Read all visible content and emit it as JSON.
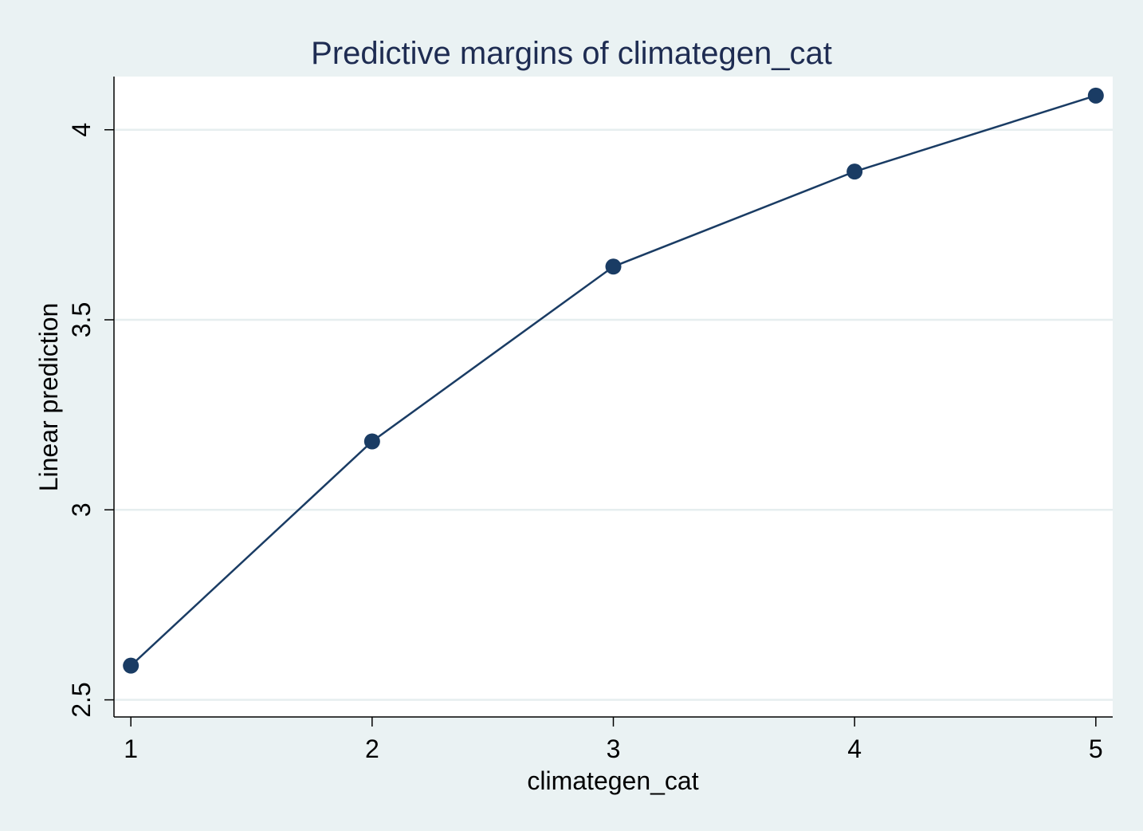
{
  "chart_data": {
    "type": "line",
    "title": "Predictive margins of climategen_cat",
    "xlabel": "climategen_cat",
    "ylabel": "Linear prediction",
    "x": [
      1,
      2,
      3,
      4,
      5
    ],
    "y": [
      2.59,
      3.18,
      3.64,
      3.89,
      4.09
    ],
    "xticks": [
      1,
      2,
      3,
      4,
      5
    ],
    "xtick_labels": [
      "1",
      "2",
      "3",
      "4",
      "5"
    ],
    "yticks": [
      2.5,
      3,
      3.5,
      4
    ],
    "ytick_labels": [
      "2.5",
      "3",
      "3.5",
      "4"
    ],
    "xlim": [
      0.93,
      5.07
    ],
    "ylim": [
      2.455,
      4.14
    ],
    "grid": true,
    "colors": {
      "background": "#eaf2f3",
      "plot_area": "#ffffff",
      "series": "#1a3c64",
      "grid": "#e6eeef",
      "title": "#1e2c52",
      "text": "#000000"
    }
  }
}
